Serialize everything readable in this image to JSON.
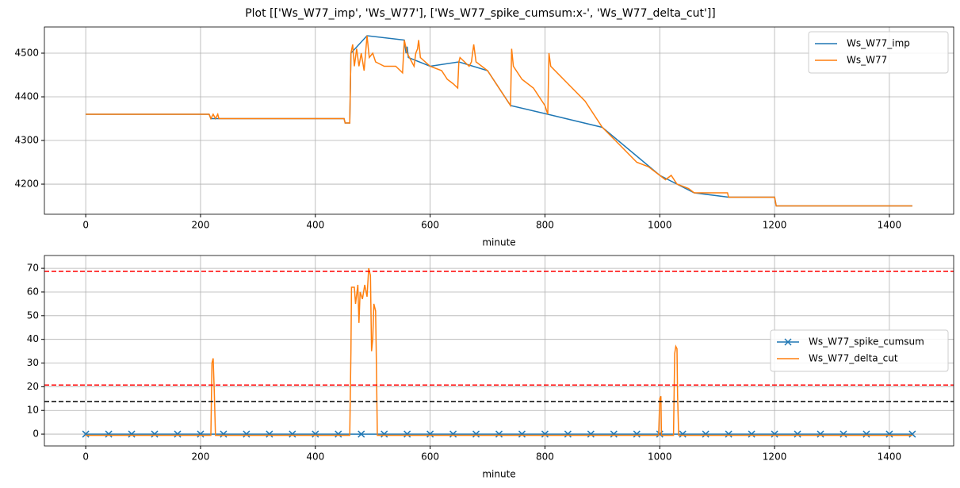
{
  "title": "Plot [['Ws_W77_imp', 'Ws_W77'], ['Ws_W77_spike_cumsum:x-', 'Ws_W77_delta_cut']]",
  "chart_data": [
    {
      "type": "line",
      "x_label": "minute",
      "grid": true,
      "legend": "upper right",
      "xlim": [
        -72,
        1512
      ],
      "xticks": [
        0,
        200,
        400,
        600,
        800,
        1000,
        1200,
        1400
      ],
      "ylim": [
        4131,
        4560
      ],
      "yticks": [
        4200,
        4300,
        4400,
        4500
      ],
      "series": [
        {
          "name": "Ws_W77_imp",
          "color": "#1f77b4",
          "x": [
            0,
            215,
            218,
            232,
            450,
            452,
            460,
            462,
            490,
            555,
            558,
            560,
            562,
            600,
            650,
            700,
            740,
            805,
            900,
            1000,
            1060,
            1120,
            1200,
            1203,
            1440
          ],
          "values": [
            4360,
            4360,
            4350,
            4350,
            4350,
            4340,
            4340,
            4500,
            4540,
            4530,
            4500,
            4515,
            4490,
            4470,
            4480,
            4460,
            4380,
            4360,
            4330,
            4220,
            4180,
            4170,
            4170,
            4150,
            4150
          ]
        },
        {
          "name": "Ws_W77",
          "color": "#ff7f0e",
          "x": [
            0,
            215,
            218,
            222,
            226,
            230,
            232,
            450,
            452,
            460,
            462,
            465,
            468,
            472,
            476,
            480,
            485,
            490,
            494,
            500,
            505,
            520,
            540,
            548,
            552,
            555,
            560,
            568,
            572,
            575,
            578,
            580,
            583,
            600,
            620,
            630,
            640,
            648,
            650,
            652,
            668,
            672,
            676,
            680,
            700,
            720,
            735,
            740,
            742,
            745,
            760,
            780,
            800,
            805,
            807,
            810,
            840,
            870,
            900,
            930,
            960,
            980,
            1000,
            1010,
            1020,
            1030,
            1050,
            1060,
            1118,
            1120,
            1200,
            1203,
            1440
          ],
          "values": [
            4360,
            4360,
            4350,
            4360,
            4350,
            4360,
            4350,
            4350,
            4340,
            4340,
            4500,
            4520,
            4470,
            4510,
            4470,
            4500,
            4460,
            4540,
            4490,
            4500,
            4480,
            4470,
            4470,
            4460,
            4455,
            4530,
            4500,
            4480,
            4470,
            4500,
            4510,
            4530,
            4490,
            4470,
            4460,
            4440,
            4430,
            4420,
            4480,
            4490,
            4470,
            4480,
            4520,
            4480,
            4460,
            4420,
            4390,
            4380,
            4510,
            4470,
            4440,
            4420,
            4380,
            4360,
            4500,
            4470,
            4430,
            4390,
            4330,
            4290,
            4250,
            4240,
            4220,
            4210,
            4220,
            4200,
            4190,
            4180,
            4180,
            4170,
            4170,
            4150,
            4150
          ]
        }
      ]
    },
    {
      "type": "line",
      "x_label": "minute",
      "grid": true,
      "legend": "center right",
      "xlim": [
        -72,
        1512
      ],
      "xticks": [
        0,
        200,
        400,
        600,
        800,
        1000,
        1200,
        1400
      ],
      "ylim": [
        -5,
        75.4
      ],
      "yticks": [
        0,
        10,
        20,
        30,
        40,
        50,
        60,
        70
      ],
      "hlines": [
        {
          "value": 68.7,
          "color": "red"
        },
        {
          "value": 20.7,
          "color": "red"
        },
        {
          "value": 13.7,
          "color": "black"
        }
      ],
      "series": [
        {
          "name": "Ws_W77_spike_cumsum",
          "color": "#1f77b4",
          "marker": "x",
          "x": [
            0,
            40,
            80,
            120,
            160,
            200,
            240,
            280,
            320,
            360,
            400,
            440,
            480,
            520,
            560,
            600,
            640,
            680,
            720,
            760,
            800,
            840,
            880,
            920,
            960,
            1000,
            1040,
            1080,
            1120,
            1160,
            1200,
            1240,
            1280,
            1320,
            1360,
            1400,
            1440
          ],
          "values": [
            0,
            0,
            0,
            0,
            0,
            0,
            0,
            0,
            0,
            0,
            0,
            0,
            0,
            0,
            0,
            0,
            0,
            0,
            0,
            0,
            0,
            0,
            0,
            0,
            0,
            0,
            0,
            0,
            0,
            0,
            0,
            0,
            0,
            0,
            0,
            0,
            0
          ]
        },
        {
          "name": "Ws_W77_delta_cut",
          "color": "#ff7f0e",
          "x": [
            0,
            218,
            220,
            222,
            224,
            226,
            460,
            462,
            463,
            468,
            470,
            474,
            476,
            478,
            482,
            486,
            490,
            493,
            496,
            498,
            500,
            502,
            505,
            506,
            508,
            998,
            1000,
            1002,
            1003,
            1024,
            1026,
            1028,
            1030,
            1031,
            1033,
            1440
          ],
          "values": [
            -0.5,
            -0.5,
            30,
            32,
            18,
            -0.5,
            -0.5,
            35,
            62,
            62,
            55,
            63,
            47,
            60,
            57,
            63,
            58,
            70,
            67,
            35,
            40,
            55,
            52,
            37,
            -0.5,
            -0.5,
            15,
            16,
            -0.5,
            -0.5,
            34,
            37,
            36,
            17,
            -0.5,
            -0.5
          ]
        }
      ]
    }
  ]
}
